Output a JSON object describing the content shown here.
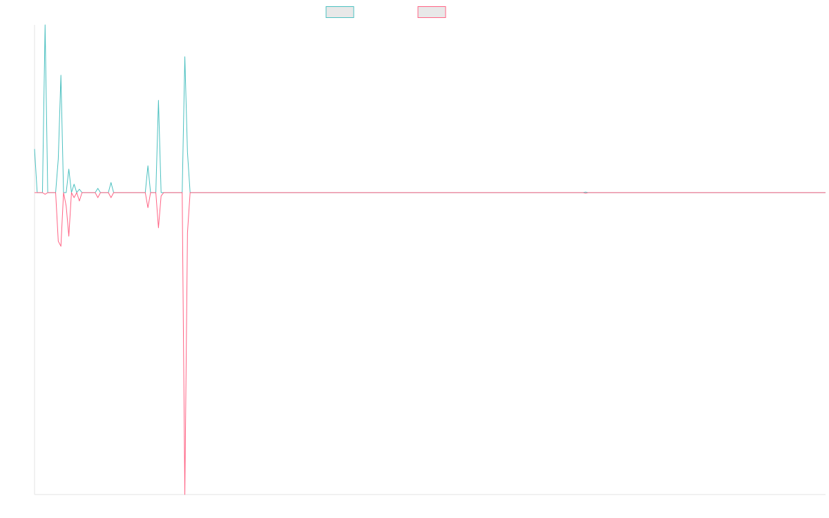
{
  "chart_data": {
    "type": "line",
    "title": "",
    "xlabel": "",
    "ylabel": "",
    "x_range": [
      0,
      300
    ],
    "ylim": [
      -1.8,
      1.0
    ],
    "legend": {
      "placement": "top-center",
      "entries": [
        "",
        ""
      ]
    },
    "grid": false,
    "colors": {
      "series_a": "#4bc0c0",
      "series_b": "#ff6384",
      "legend_fill": "#e8e8e8",
      "axis": "#e3e3e3"
    },
    "series": [
      {
        "values": [
          [
            0,
            0.26
          ],
          [
            1,
            0
          ],
          [
            3,
            0
          ],
          [
            4,
            1.0
          ],
          [
            5,
            0
          ],
          [
            8,
            0
          ],
          [
            9,
            0.2
          ],
          [
            10,
            0.7
          ],
          [
            11,
            0
          ],
          [
            12,
            0
          ],
          [
            13,
            0.14
          ],
          [
            14,
            0
          ],
          [
            15,
            0.05
          ],
          [
            16,
            0
          ],
          [
            17,
            0.02
          ],
          [
            18,
            0
          ],
          [
            19,
            0
          ],
          [
            23,
            0
          ],
          [
            24,
            0.025
          ],
          [
            25,
            0
          ],
          [
            28,
            0
          ],
          [
            29,
            0.06
          ],
          [
            30,
            0
          ],
          [
            42,
            0
          ],
          [
            43,
            0.16
          ],
          [
            44,
            0
          ],
          [
            46,
            0
          ],
          [
            47,
            0.55
          ],
          [
            48,
            0
          ],
          [
            56,
            0
          ],
          [
            57,
            0.81
          ],
          [
            58,
            0.24
          ],
          [
            59,
            0
          ],
          [
            70,
            0
          ],
          [
            208,
            0
          ],
          [
            209,
            0.003
          ],
          [
            210,
            0
          ],
          [
            300,
            0
          ]
        ]
      },
      {
        "values": [
          [
            0,
            0
          ],
          [
            3,
            0
          ],
          [
            4,
            -0.01
          ],
          [
            5,
            0
          ],
          [
            8,
            0
          ],
          [
            9,
            -0.29
          ],
          [
            10,
            -0.32
          ],
          [
            11,
            0
          ],
          [
            12,
            -0.08
          ],
          [
            13,
            -0.26
          ],
          [
            14,
            0
          ],
          [
            15,
            -0.03
          ],
          [
            16,
            0
          ],
          [
            17,
            -0.05
          ],
          [
            18,
            0
          ],
          [
            23,
            0
          ],
          [
            24,
            -0.03
          ],
          [
            25,
            0
          ],
          [
            28,
            0
          ],
          [
            29,
            -0.03
          ],
          [
            30,
            0
          ],
          [
            42,
            0
          ],
          [
            43,
            -0.09
          ],
          [
            44,
            0
          ],
          [
            46,
            0
          ],
          [
            47,
            -0.21
          ],
          [
            48,
            -0.02
          ],
          [
            49,
            0
          ],
          [
            56,
            0
          ],
          [
            57,
            -1.8
          ],
          [
            58,
            -0.24
          ],
          [
            59,
            0
          ],
          [
            208,
            0
          ],
          [
            209,
            -0.003
          ],
          [
            210,
            0
          ],
          [
            300,
            0
          ]
        ]
      }
    ]
  }
}
